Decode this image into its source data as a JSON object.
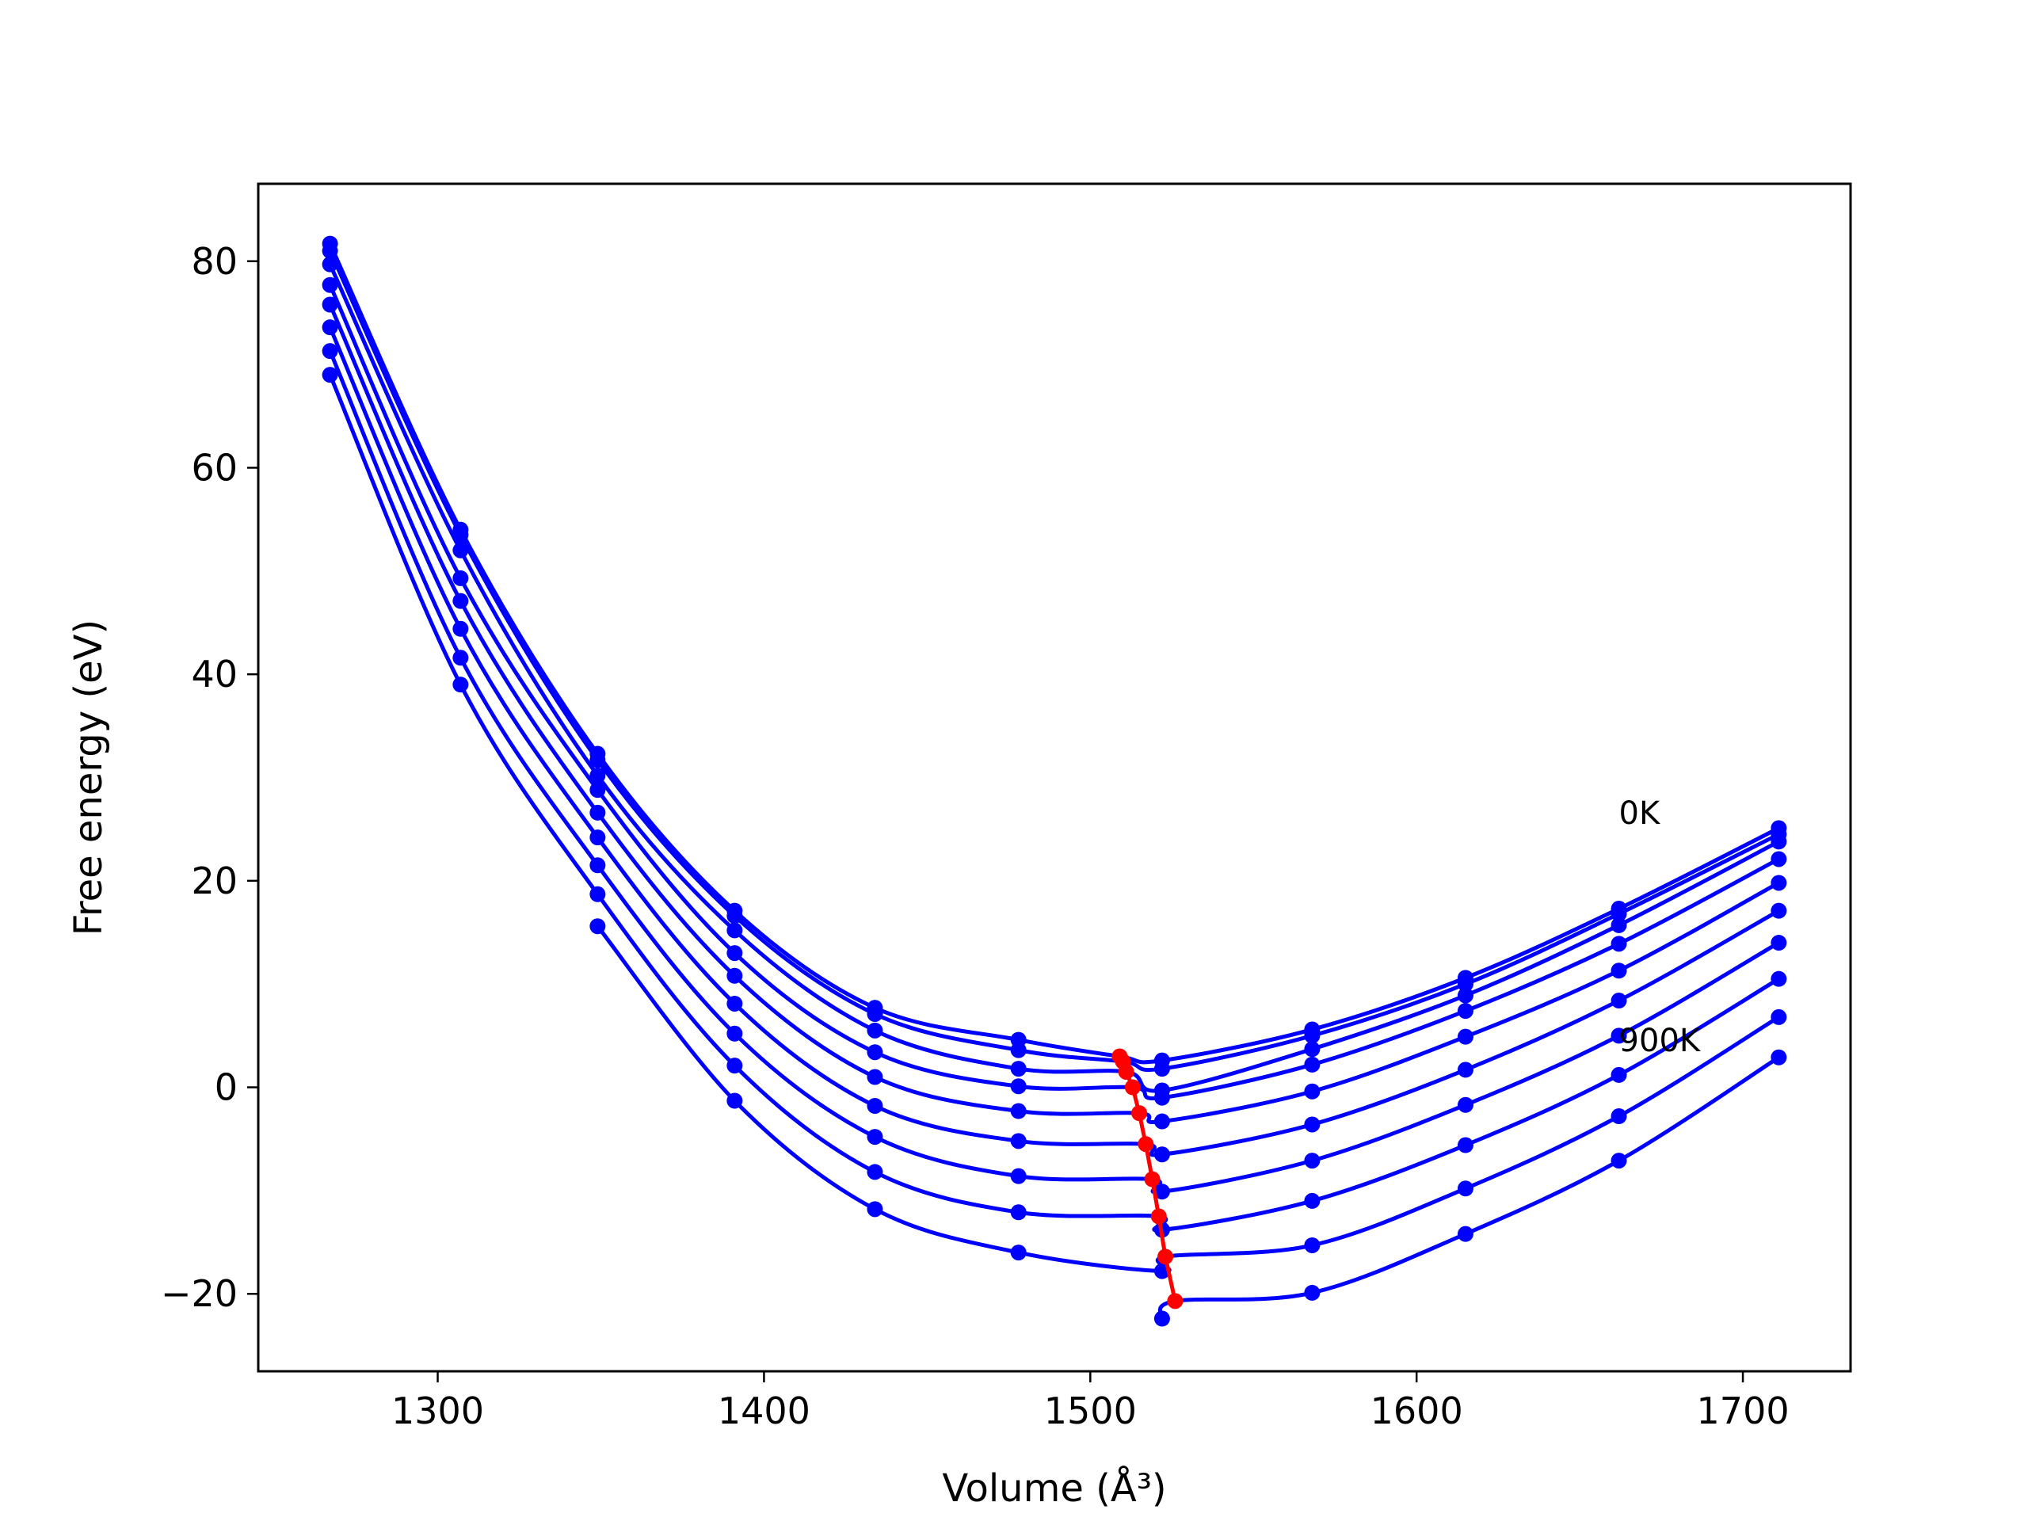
{
  "chart_data": {
    "type": "line",
    "title": "",
    "xlabel": "Volume (Å³)",
    "ylabel": "Free energy (eV)",
    "xlim": [
      1245,
      1733
    ],
    "ylim": [
      -27.5,
      87.5
    ],
    "xticks": [
      1300,
      1400,
      1500,
      1600,
      1700
    ],
    "yticks": [
      -20,
      0,
      20,
      40,
      60,
      80
    ],
    "ytick_labels": [
      "−20",
      "0",
      "20",
      "40",
      "60",
      "80"
    ],
    "grid": false,
    "legend": "none",
    "colors": {
      "curves": "#0000ff",
      "points": "#0000ff",
      "min_line": "#ff0000",
      "frame": "#000000"
    },
    "annotations": [
      {
        "text": "0K",
        "x": 1662,
        "y": 25.5
      },
      {
        "text": "900K",
        "x": 1662,
        "y": 3.5
      }
    ],
    "volumes": [
      1267,
      1307,
      1349,
      1391,
      1434,
      1478,
      1522,
      1568,
      1615,
      1662,
      1711
    ],
    "series": [
      {
        "values": [
          81.7,
          54.0,
          32.3,
          17.1,
          7.7,
          4.6,
          2.6,
          5.6,
          10.6,
          17.3,
          25.1
        ],
        "fit_min": {
          "x": 1509,
          "y": 3.0
        }
      },
      {
        "values": [
          81.0,
          53.5,
          31.7,
          16.6,
          7.1,
          3.6,
          1.8,
          5.0,
          10.0,
          16.8,
          24.5
        ],
        "fit_min": {
          "x": 1510,
          "y": 2.5
        }
      },
      {
        "values": [
          79.7,
          52.0,
          30.2,
          15.2,
          5.5,
          1.8,
          -0.3,
          3.7,
          8.9,
          15.7,
          23.8
        ],
        "fit_min": {
          "x": 1511,
          "y": 1.5
        }
      },
      {
        "values": [
          77.7,
          49.3,
          28.8,
          13.0,
          3.4,
          0.1,
          -1.0,
          2.2,
          7.4,
          13.9,
          22.1
        ],
        "fit_min": {
          "x": 1513,
          "y": 0.0
        }
      },
      {
        "values": [
          75.8,
          47.1,
          26.6,
          10.8,
          1.0,
          -2.3,
          -3.3,
          -0.4,
          4.9,
          11.3,
          19.8
        ],
        "fit_min": {
          "x": 1515,
          "y": -2.5
        }
      },
      {
        "values": [
          73.6,
          44.4,
          24.2,
          8.1,
          -1.8,
          -5.2,
          -6.5,
          -3.6,
          1.7,
          8.4,
          17.1
        ],
        "fit_min": {
          "x": 1517,
          "y": -5.5
        }
      },
      {
        "values": [
          71.3,
          41.6,
          21.5,
          5.2,
          -4.8,
          -8.6,
          -10.1,
          -7.1,
          -1.7,
          5.0,
          14.0
        ],
        "fit_min": {
          "x": 1519,
          "y": -8.9
        }
      },
      {
        "values": [
          69.0,
          39.0,
          18.7,
          2.1,
          -8.2,
          -12.1,
          -13.8,
          -11.0,
          -5.6,
          1.2,
          10.5
        ],
        "fit_min": {
          "x": 1521,
          "y": -12.5
        }
      },
      {
        "values": [
          null,
          null,
          15.6,
          -1.3,
          -11.8,
          -16.0,
          -17.8,
          -15.3,
          -9.8,
          -2.8,
          6.8
        ],
        "fit_min": {
          "x": 1523,
          "y": -16.4
        }
      },
      {
        "values": [
          null,
          null,
          null,
          null,
          null,
          null,
          -22.4,
          -19.9,
          -14.2,
          -7.1,
          2.9
        ],
        "fit_min": {
          "x": 1526,
          "y": -20.7
        }
      }
    ],
    "min_line": {
      "x": [
        1509,
        1510,
        1511,
        1513,
        1515,
        1517,
        1519,
        1521,
        1523,
        1526
      ],
      "y": [
        3.0,
        2.5,
        1.5,
        0.0,
        -2.5,
        -5.5,
        -8.9,
        -12.5,
        -16.4,
        -20.7
      ]
    }
  }
}
